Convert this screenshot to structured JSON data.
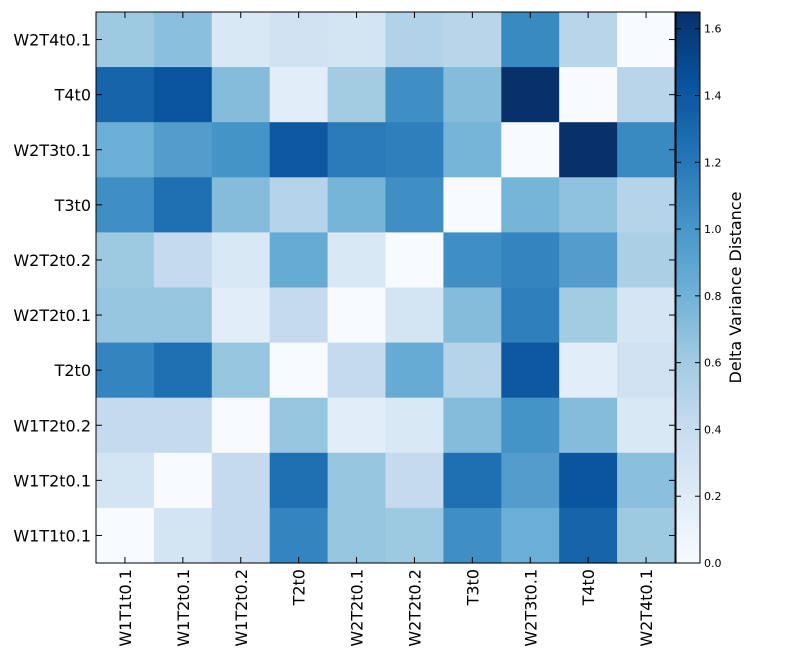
{
  "chart_data": {
    "type": "heatmap",
    "x_labels": [
      "W1T1t0.1",
      "W1T2t0.1",
      "W1T2t0.2",
      "T2t0",
      "W2T2t0.1",
      "W2T2t0.2",
      "T3t0",
      "W2T3t0.1",
      "T4t0",
      "W2T4t0.1"
    ],
    "y_labels": [
      "W2T4t0.1",
      "T4t0",
      "W2T3t0.1",
      "T3t0",
      "W2T2t0.2",
      "W2T2t0.1",
      "T2t0",
      "W1T2t0.2",
      "W1T2t0.1",
      "W1T1t0.1"
    ],
    "values": [
      [
        0.62,
        0.7,
        0.25,
        0.33,
        0.3,
        0.52,
        0.48,
        1.08,
        0.48,
        0.0
      ],
      [
        1.32,
        1.42,
        0.72,
        0.18,
        0.6,
        1.05,
        0.72,
        1.65,
        0.0,
        0.48
      ],
      [
        0.82,
        0.95,
        1.02,
        1.4,
        1.18,
        1.15,
        0.78,
        0.0,
        1.65,
        1.08
      ],
      [
        1.05,
        1.25,
        0.72,
        0.5,
        0.78,
        1.05,
        0.0,
        0.78,
        0.68,
        0.5
      ],
      [
        0.62,
        0.42,
        0.25,
        0.85,
        0.25,
        0.0,
        1.05,
        1.12,
        0.95,
        0.55
      ],
      [
        0.65,
        0.65,
        0.18,
        0.42,
        0.0,
        0.3,
        0.72,
        1.15,
        0.6,
        0.28
      ],
      [
        1.12,
        1.25,
        0.65,
        0.0,
        0.42,
        0.85,
        0.5,
        1.4,
        0.18,
        0.33
      ],
      [
        0.42,
        0.42,
        0.0,
        0.65,
        0.18,
        0.25,
        0.72,
        1.02,
        0.72,
        0.25
      ],
      [
        0.3,
        0.0,
        0.42,
        1.25,
        0.65,
        0.42,
        1.25,
        0.95,
        1.42,
        0.7
      ],
      [
        0.0,
        0.3,
        0.42,
        1.12,
        0.65,
        0.62,
        1.05,
        0.82,
        1.32,
        0.62
      ]
    ],
    "vmin": 0.0,
    "vmax": 1.65,
    "colormap": "Blues",
    "colormap_stops": [
      "#f7fbff",
      "#deebf7",
      "#c6dbef",
      "#9ecae1",
      "#6baed6",
      "#4292c6",
      "#2171b5",
      "#08519c",
      "#08306b"
    ],
    "colorbar": {
      "label": "Delta Variance Distance",
      "ticks": [
        "0.0",
        "0.2",
        "0.4",
        "0.6",
        "0.8",
        "1.0",
        "1.2",
        "1.4",
        "1.6"
      ]
    },
    "grid": false
  }
}
